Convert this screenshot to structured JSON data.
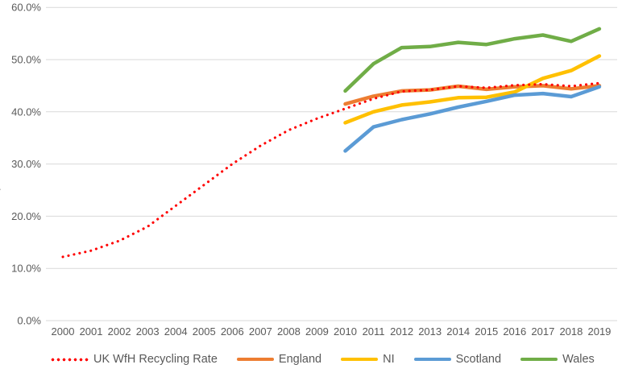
{
  "chart_data": {
    "type": "line",
    "title": "",
    "x_categories": [
      "2000",
      "2001",
      "2002",
      "2003",
      "2004",
      "2005",
      "2006",
      "2007",
      "2008",
      "2009",
      "2010",
      "2011",
      "2012",
      "2013",
      "2014",
      "2015",
      "2016",
      "2017",
      "2018",
      "2019"
    ],
    "y_ticks": [
      "0.0%",
      "10.0%",
      "20.0%",
      "30.0%",
      "40.0%",
      "50.0%",
      "60.0%"
    ],
    "y_axis": {
      "min": 0,
      "max": 60,
      "step": 10,
      "unit": "%"
    },
    "y_axis_title_fragment": ")",
    "grid": true,
    "legend_position": "bottom",
    "series": [
      {
        "name": "England",
        "color": "#ED7D31",
        "style": "solid",
        "values": [
          null,
          null,
          null,
          null,
          null,
          null,
          null,
          null,
          null,
          null,
          41.5,
          43.0,
          44.0,
          44.2,
          44.9,
          44.3,
          44.8,
          45.0,
          44.4,
          45.0
        ]
      },
      {
        "name": "NI",
        "color": "#FFC000",
        "style": "solid",
        "values": [
          null,
          null,
          null,
          null,
          null,
          null,
          null,
          null,
          null,
          null,
          37.9,
          40.0,
          41.3,
          41.9,
          42.7,
          42.8,
          43.8,
          46.4,
          47.9,
          50.7
        ]
      },
      {
        "name": "Scotland",
        "color": "#5B9BD5",
        "style": "solid",
        "values": [
          null,
          null,
          null,
          null,
          null,
          null,
          null,
          null,
          null,
          null,
          32.5,
          37.1,
          38.5,
          39.6,
          40.9,
          42.0,
          43.2,
          43.5,
          42.9,
          44.8
        ]
      },
      {
        "name": "Wales",
        "color": "#70AD47",
        "style": "solid",
        "values": [
          null,
          null,
          null,
          null,
          null,
          null,
          null,
          null,
          null,
          null,
          44.0,
          49.2,
          52.3,
          52.5,
          53.3,
          52.9,
          54.0,
          54.7,
          53.5,
          55.9
        ]
      },
      {
        "name": "UK WfH Recycling Rate",
        "color": "#FF0000",
        "style": "dotted",
        "values": [
          12.2,
          13.4,
          15.3,
          18.0,
          22.0,
          26.0,
          30.0,
          33.5,
          36.5,
          38.7,
          40.6,
          42.5,
          43.9,
          44.2,
          44.9,
          44.6,
          45.1,
          45.3,
          44.9,
          45.5
        ]
      }
    ],
    "colors": {
      "grid": "#D9D9D9",
      "tick_text": "#595959"
    }
  },
  "legend": {
    "uk": "UK WfH Recycling Rate",
    "england": "England",
    "ni": "NI",
    "scotland": "Scotland",
    "wales": "Wales"
  }
}
